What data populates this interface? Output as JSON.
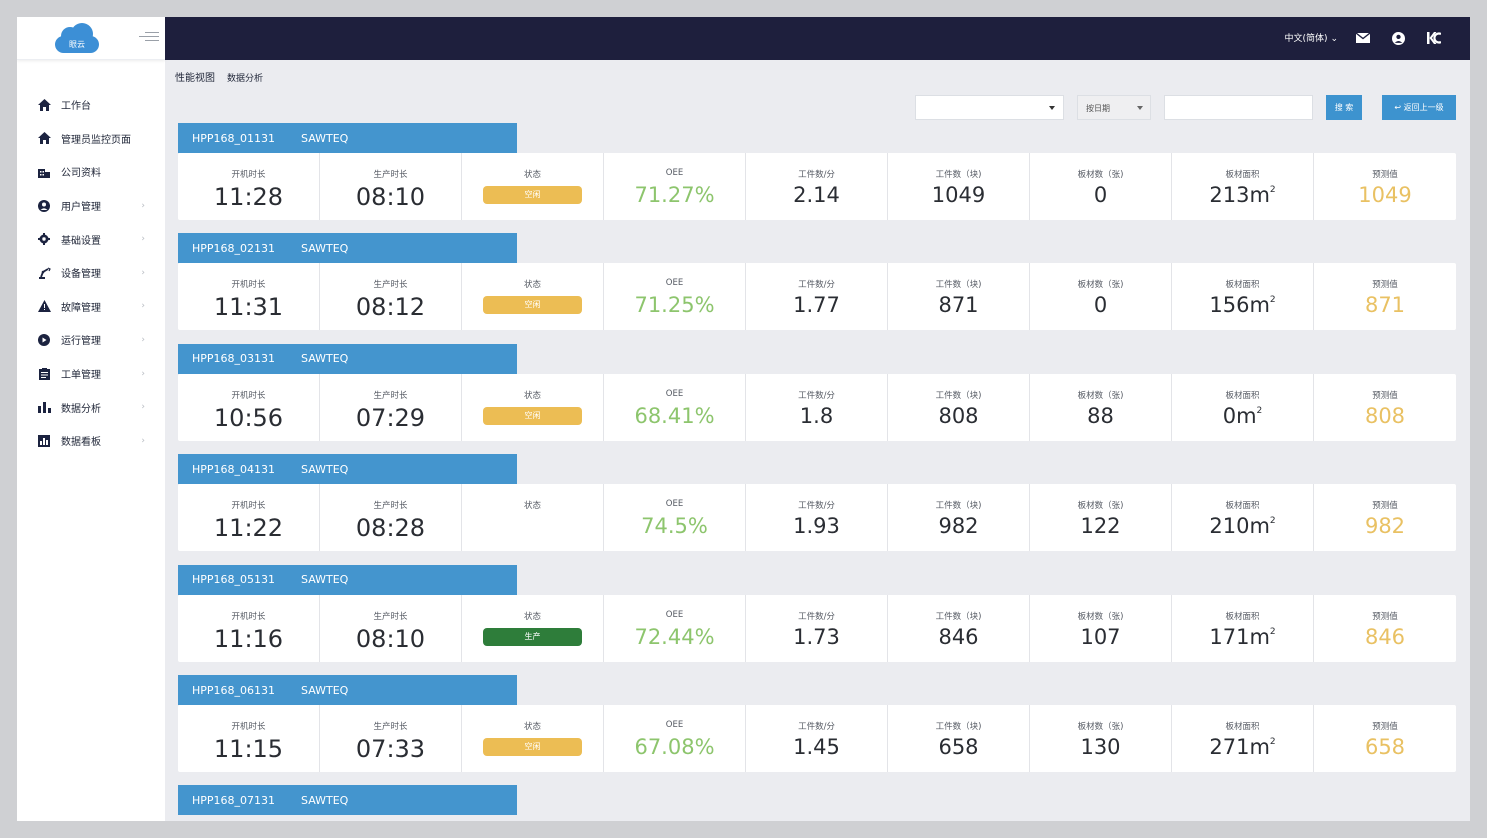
{
  "app": {
    "logo_text": "眼云"
  },
  "sidebar": {
    "items": [
      {
        "label": "工作台",
        "icon": "home-icon",
        "arrow": false
      },
      {
        "label": "管理员监控页面",
        "icon": "home-icon",
        "arrow": false
      },
      {
        "label": "公司资料",
        "icon": "building-icon",
        "arrow": false
      },
      {
        "label": "用户管理",
        "icon": "user-circle-icon",
        "arrow": true
      },
      {
        "label": "基础设置",
        "icon": "gear-icon",
        "arrow": true
      },
      {
        "label": "设备管理",
        "icon": "robot-arm-icon",
        "arrow": true
      },
      {
        "label": "故障管理",
        "icon": "warning-icon",
        "arrow": true
      },
      {
        "label": "运行管理",
        "icon": "play-circle-icon",
        "arrow": true
      },
      {
        "label": "工单管理",
        "icon": "clipboard-icon",
        "arrow": true
      },
      {
        "label": "数据分析",
        "icon": "bar-chart-icon",
        "arrow": true
      },
      {
        "label": "数据看板",
        "icon": "dashboard-chart-icon",
        "arrow": true
      }
    ]
  },
  "topbar": {
    "language": "中文(简体)"
  },
  "breadcrumb": {
    "current": "性能视图",
    "sub": "数据分析"
  },
  "filters": {
    "date_select": "按日期",
    "search_button": "搜 索",
    "back_button": "返回上一级"
  },
  "labels": {
    "boot_time": "开机时长",
    "production_time": "生产时长",
    "status": "状态",
    "oee": "OEE",
    "pieces_per_min": "工件数/分",
    "pieces": "工件数（块)",
    "boards": "板材数（张)",
    "board_area": "板材面积",
    "forecast": "预测值"
  },
  "colors": {
    "header_blue": "#4495ce",
    "topbar": "#1e1f3d",
    "idle": "#ecbd54",
    "production": "#2e7d3a",
    "oee_green": "#8dc56d",
    "forecast_yellow": "#e9c163"
  },
  "machines": [
    {
      "id": "HPP168_01131",
      "brand": "SAWTEQ",
      "boot": "11:28",
      "prod": "08:10",
      "status": "空闲",
      "status_type": "idle",
      "oee": "71.27%",
      "ppm": "2.14",
      "pieces": "1049",
      "boards": "0",
      "area": "213m",
      "forecast": "1049"
    },
    {
      "id": "HPP168_02131",
      "brand": "SAWTEQ",
      "boot": "11:31",
      "prod": "08:12",
      "status": "空闲",
      "status_type": "idle",
      "oee": "71.25%",
      "ppm": "1.77",
      "pieces": "871",
      "boards": "0",
      "area": "156m",
      "forecast": "871"
    },
    {
      "id": "HPP168_03131",
      "brand": "SAWTEQ",
      "boot": "10:56",
      "prod": "07:29",
      "status": "空闲",
      "status_type": "idle",
      "oee": "68.41%",
      "ppm": "1.8",
      "pieces": "808",
      "boards": "88",
      "area": "0m",
      "forecast": "808"
    },
    {
      "id": "HPP168_04131",
      "brand": "SAWTEQ",
      "boot": "11:22",
      "prod": "08:28",
      "status": "",
      "status_type": "none",
      "oee": "74.5%",
      "ppm": "1.93",
      "pieces": "982",
      "boards": "122",
      "area": "210m",
      "forecast": "982"
    },
    {
      "id": "HPP168_05131",
      "brand": "SAWTEQ",
      "boot": "11:16",
      "prod": "08:10",
      "status": "生产",
      "status_type": "prod",
      "oee": "72.44%",
      "ppm": "1.73",
      "pieces": "846",
      "boards": "107",
      "area": "171m",
      "forecast": "846"
    },
    {
      "id": "HPP168_06131",
      "brand": "SAWTEQ",
      "boot": "11:15",
      "prod": "07:33",
      "status": "空闲",
      "status_type": "idle",
      "oee": "67.08%",
      "ppm": "1.45",
      "pieces": "658",
      "boards": "130",
      "area": "271m",
      "forecast": "658"
    },
    {
      "id": "HPP168_07131",
      "brand": "SAWTEQ"
    }
  ],
  "area_unit_sup": "2"
}
